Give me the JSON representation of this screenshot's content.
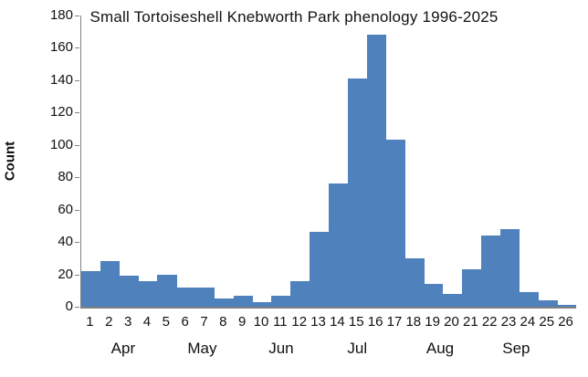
{
  "chart_data": {
    "type": "bar",
    "title": "Small Tortoiseshell Knebworth Park phenology 1996-2025",
    "ylabel": "Count",
    "xlabel": "",
    "ylim": [
      0,
      180
    ],
    "y_ticks": [
      0,
      20,
      40,
      60,
      80,
      100,
      120,
      140,
      160,
      180
    ],
    "categories": [
      "1",
      "2",
      "3",
      "4",
      "5",
      "6",
      "7",
      "8",
      "9",
      "10",
      "11",
      "12",
      "13",
      "14",
      "15",
      "16",
      "17",
      "18",
      "19",
      "20",
      "21",
      "22",
      "23",
      "24",
      "25",
      "26"
    ],
    "values": [
      22,
      28,
      19,
      16,
      20,
      12,
      12,
      5,
      7,
      3,
      7,
      16,
      46,
      76,
      141,
      168,
      103,
      30,
      14,
      8,
      23,
      44,
      48,
      9,
      4,
      1
    ],
    "month_groups": [
      {
        "label": "Apr",
        "week": 2.75
      },
      {
        "label": "May",
        "week": 6.9
      },
      {
        "label": "Jun",
        "week": 11.05
      },
      {
        "label": "Jul",
        "week": 15.05
      },
      {
        "label": "Aug",
        "week": 19.4
      },
      {
        "label": "Sep",
        "week": 23.4
      }
    ],
    "bar_color": "#4f81bd",
    "axis_color": "#808080",
    "grid": false,
    "legend": false
  }
}
